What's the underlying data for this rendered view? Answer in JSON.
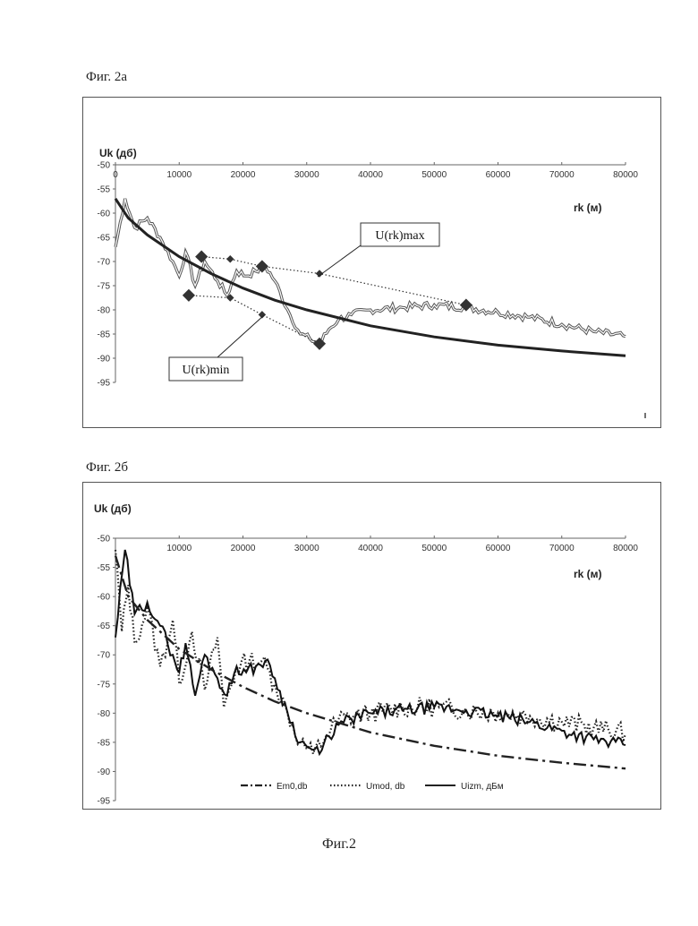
{
  "labels": {
    "fig_2a": "Фиг. 2а",
    "fig_2b": "Фиг. 2б",
    "fig_caption": "Фиг.2"
  },
  "chart_data": [
    {
      "type": "line",
      "ylabel": "Uk (дб)",
      "xlabel": "rk (м)",
      "xlim": [
        0,
        80000
      ],
      "ylim": [
        -95,
        -50
      ],
      "x_ticks": [
        "0",
        "10000",
        "20000",
        "30000",
        "40000",
        "50000",
        "60000",
        "70000",
        "80000"
      ],
      "y_ticks": [
        "-50",
        "-55",
        "-60",
        "-65",
        "-70",
        "-75",
        "-80",
        "-85",
        "-90",
        "-95"
      ],
      "annotations": [
        "U(rk)max",
        "U(rk)min"
      ],
      "series": [
        {
          "role": "model-curve",
          "x": [
            0,
            2000,
            5000,
            10000,
            15000,
            20000,
            25000,
            30000,
            40000,
            50000,
            60000,
            70000,
            80000
          ],
          "values": [
            -57,
            -61,
            -64.5,
            -69,
            -72.5,
            -75.5,
            -78,
            -80,
            -83.3,
            -85.6,
            -87.3,
            -88.5,
            -89.5
          ]
        },
        {
          "role": "measured",
          "x": [
            0,
            1500,
            3000,
            5000,
            7000,
            9000,
            10000,
            11000,
            12500,
            14000,
            16000,
            17500,
            19000,
            20500,
            22000,
            23500,
            25000,
            27000,
            29000,
            30500,
            32000,
            33500,
            35000,
            37000,
            40000,
            45000,
            50000,
            55000,
            60000,
            65000,
            70000,
            75000,
            80000
          ],
          "values": [
            -67,
            -57,
            -63,
            -61,
            -65,
            -70,
            -73,
            -68,
            -75,
            -70,
            -74,
            -77,
            -72,
            -73,
            -72,
            -71,
            -74,
            -80,
            -85,
            -86,
            -87,
            -84,
            -82,
            -81,
            -80,
            -79.5,
            -79,
            -79.5,
            -80.5,
            -81.5,
            -83,
            -84.5,
            -85.5
          ]
        },
        {
          "role": "max-envelope",
          "x": [
            13500,
            18000,
            23000,
            32000,
            55000
          ],
          "values": [
            -69,
            -69.5,
            -71,
            -72.5,
            -79
          ]
        },
        {
          "role": "min-envelope",
          "x": [
            11500,
            18000,
            23000,
            32000
          ],
          "values": [
            -77,
            -77.5,
            -81,
            -87
          ]
        }
      ]
    },
    {
      "type": "line",
      "ylabel": "Uk (дб)",
      "xlabel": "rk (м)",
      "xlim": [
        0,
        80000
      ],
      "ylim": [
        -95,
        -50
      ],
      "x_ticks": [
        "10000",
        "20000",
        "30000",
        "40000",
        "50000",
        "60000",
        "70000",
        "80000"
      ],
      "y_ticks": [
        "-50",
        "-55",
        "-60",
        "-65",
        "-70",
        "-75",
        "-80",
        "-85",
        "-90",
        "-95"
      ],
      "legend": "bottom",
      "series": [
        {
          "name": "Em0,db",
          "x": [
            0,
            2000,
            5000,
            10000,
            15000,
            20000,
            25000,
            30000,
            40000,
            50000,
            60000,
            70000,
            80000
          ],
          "values": [
            -53,
            -60,
            -64,
            -69,
            -72.5,
            -75.5,
            -78,
            -80,
            -83.3,
            -85.6,
            -87.3,
            -88.5,
            -89.5
          ]
        },
        {
          "name": "Umod, db",
          "x": [
            0,
            1000,
            2000,
            3000,
            5000,
            7000,
            9000,
            10000,
            12000,
            14000,
            16000,
            17000,
            19000,
            21000,
            23000,
            25000,
            27000,
            29000,
            31000,
            33000,
            35000,
            40000,
            45000,
            50000,
            55000,
            60000,
            65000,
            70000,
            75000,
            80000
          ],
          "values": [
            -52,
            -66,
            -58,
            -68,
            -62,
            -72,
            -64,
            -75,
            -66,
            -76,
            -67,
            -79,
            -72,
            -71,
            -71,
            -75,
            -80,
            -85,
            -87,
            -84,
            -81,
            -80,
            -79,
            -79,
            -79.5,
            -80,
            -80.5,
            -81.5,
            -82.5,
            -83.5
          ]
        },
        {
          "name": "Uizm, дБм",
          "x": [
            0,
            1500,
            3000,
            5000,
            7000,
            9000,
            10000,
            11000,
            12500,
            14000,
            16000,
            17500,
            19000,
            20500,
            22000,
            23500,
            25000,
            27000,
            29000,
            30500,
            32000,
            33500,
            35000,
            37000,
            40000,
            45000,
            50000,
            55000,
            60000,
            65000,
            70000,
            75000,
            80000
          ],
          "values": [
            -67,
            -52,
            -63,
            -61,
            -65,
            -70,
            -73,
            -68,
            -77,
            -70,
            -74,
            -77,
            -72,
            -73,
            -72,
            -71,
            -74,
            -80,
            -85,
            -86,
            -87,
            -84,
            -82,
            -81,
            -80,
            -79.5,
            -79,
            -79.5,
            -80.5,
            -81.5,
            -83,
            -84.5,
            -85.5
          ]
        }
      ]
    }
  ]
}
